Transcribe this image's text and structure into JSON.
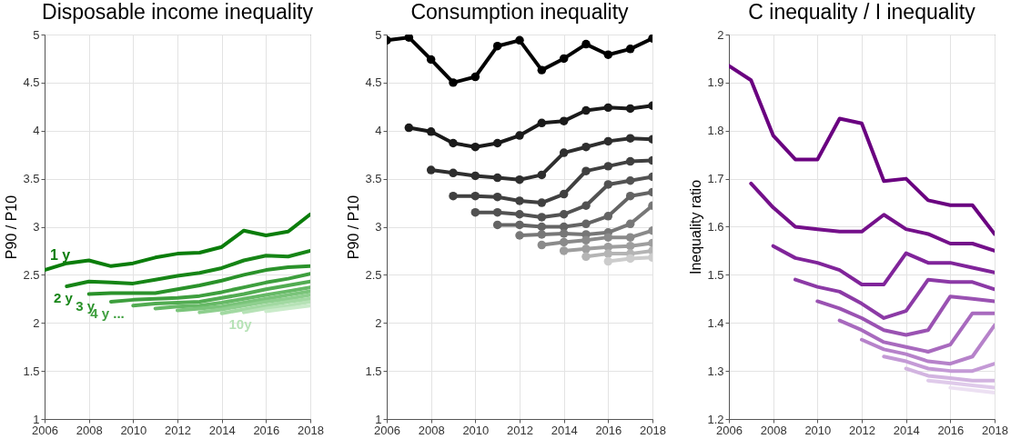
{
  "chart_data": [
    {
      "type": "line",
      "title": "Disposable income inequality",
      "ylabel": "P90 / P10",
      "xlim": [
        2006,
        2018
      ],
      "xticks": [
        2006,
        2008,
        2010,
        2012,
        2014,
        2016,
        2018
      ],
      "ylim": [
        1,
        5
      ],
      "yticks": [
        1,
        1.5,
        2,
        2.5,
        3,
        3.5,
        4,
        4.5,
        5
      ],
      "grid": true,
      "series": [
        {
          "name": "1 y",
          "color": "#0a7d0a",
          "x": [
            2006,
            2007,
            2008,
            2009,
            2010,
            2011,
            2012,
            2013,
            2014,
            2015,
            2016,
            2017,
            2018
          ],
          "values": [
            2.55,
            2.62,
            2.65,
            2.59,
            2.62,
            2.68,
            2.72,
            2.73,
            2.79,
            2.96,
            2.91,
            2.95,
            3.13
          ]
        },
        {
          "name": "2 y",
          "color": "#168516",
          "x": [
            2007,
            2008,
            2009,
            2010,
            2011,
            2012,
            2013,
            2014,
            2015,
            2016,
            2017,
            2018
          ],
          "values": [
            2.38,
            2.43,
            2.42,
            2.41,
            2.45,
            2.49,
            2.52,
            2.57,
            2.65,
            2.7,
            2.69,
            2.75
          ]
        },
        {
          "name": "3 y",
          "color": "#2a922a",
          "x": [
            2008,
            2009,
            2010,
            2011,
            2012,
            2013,
            2014,
            2015,
            2016,
            2017,
            2018
          ],
          "values": [
            2.3,
            2.31,
            2.31,
            2.31,
            2.35,
            2.39,
            2.44,
            2.5,
            2.55,
            2.58,
            2.59
          ]
        },
        {
          "name": "4 y ...",
          "color": "#3e9f3e",
          "x": [
            2009,
            2010,
            2011,
            2012,
            2013,
            2014,
            2015,
            2016,
            2017,
            2018
          ],
          "values": [
            2.22,
            2.24,
            2.25,
            2.26,
            2.28,
            2.32,
            2.37,
            2.42,
            2.46,
            2.51
          ]
        },
        {
          "color": "#52ac52",
          "x": [
            2010,
            2011,
            2012,
            2013,
            2014,
            2015,
            2016,
            2017,
            2018
          ],
          "values": [
            2.18,
            2.2,
            2.21,
            2.22,
            2.26,
            2.3,
            2.35,
            2.39,
            2.43
          ]
        },
        {
          "color": "#66b966",
          "x": [
            2011,
            2012,
            2013,
            2014,
            2015,
            2016,
            2017,
            2018
          ],
          "values": [
            2.15,
            2.17,
            2.18,
            2.21,
            2.25,
            2.29,
            2.33,
            2.37
          ]
        },
        {
          "color": "#7ac47a",
          "x": [
            2012,
            2013,
            2014,
            2015,
            2016,
            2017,
            2018
          ],
          "values": [
            2.13,
            2.15,
            2.17,
            2.21,
            2.25,
            2.29,
            2.33
          ]
        },
        {
          "color": "#8ecf8e",
          "x": [
            2013,
            2014,
            2015,
            2016,
            2017,
            2018
          ],
          "values": [
            2.11,
            2.14,
            2.18,
            2.22,
            2.25,
            2.29
          ]
        },
        {
          "color": "#a2d9a2",
          "x": [
            2014,
            2015,
            2016,
            2017,
            2018
          ],
          "values": [
            2.1,
            2.14,
            2.18,
            2.22,
            2.25
          ]
        },
        {
          "name": "10y",
          "color": "#b6e2b6",
          "x": [
            2015,
            2016,
            2017,
            2018
          ],
          "values": [
            2.11,
            2.15,
            2.18,
            2.22
          ]
        },
        {
          "color": "#caebca",
          "x": [
            2016,
            2017,
            2018
          ],
          "values": [
            2.12,
            2.15,
            2.18
          ]
        }
      ]
    },
    {
      "type": "line",
      "title": "Consumption inequality",
      "ylabel": "P90 / P10",
      "xlim": [
        2006,
        2018
      ],
      "xticks": [
        2006,
        2008,
        2010,
        2012,
        2014,
        2016,
        2018
      ],
      "ylim": [
        1,
        5
      ],
      "yticks": [
        1,
        1.5,
        2,
        2.5,
        3,
        3.5,
        4,
        4.5,
        5
      ],
      "grid": true,
      "marker": "circle",
      "series": [
        {
          "color": "#000000",
          "x": [
            2006,
            2007,
            2008,
            2009,
            2010,
            2011,
            2012,
            2013,
            2014,
            2015,
            2016,
            2017,
            2018
          ],
          "values": [
            4.94,
            4.97,
            4.74,
            4.5,
            4.56,
            4.88,
            4.94,
            4.63,
            4.75,
            4.9,
            4.79,
            4.85,
            4.96
          ]
        },
        {
          "color": "#1a1a1a",
          "x": [
            2007,
            2008,
            2009,
            2010,
            2011,
            2012,
            2013,
            2014,
            2015,
            2016,
            2017,
            2018
          ],
          "values": [
            4.03,
            3.99,
            3.87,
            3.83,
            3.87,
            3.95,
            4.08,
            4.1,
            4.21,
            4.24,
            4.23,
            4.26
          ]
        },
        {
          "color": "#2e2e2e",
          "x": [
            2008,
            2009,
            2010,
            2011,
            2012,
            2013,
            2014,
            2015,
            2016,
            2017,
            2018
          ],
          "values": [
            3.59,
            3.56,
            3.53,
            3.51,
            3.49,
            3.54,
            3.77,
            3.83,
            3.89,
            3.92,
            3.91
          ]
        },
        {
          "color": "#404040",
          "x": [
            2009,
            2010,
            2011,
            2012,
            2013,
            2014,
            2015,
            2016,
            2017,
            2018
          ],
          "values": [
            3.32,
            3.32,
            3.31,
            3.27,
            3.25,
            3.34,
            3.58,
            3.63,
            3.68,
            3.69
          ]
        },
        {
          "color": "#525252",
          "x": [
            2010,
            2011,
            2012,
            2013,
            2014,
            2015,
            2016,
            2017,
            2018
          ],
          "values": [
            3.15,
            3.15,
            3.13,
            3.1,
            3.13,
            3.22,
            3.44,
            3.48,
            3.52
          ]
        },
        {
          "color": "#646464",
          "x": [
            2011,
            2012,
            2013,
            2014,
            2015,
            2016,
            2017,
            2018
          ],
          "values": [
            3.02,
            3.02,
            3.0,
            3.0,
            3.03,
            3.11,
            3.32,
            3.36
          ]
        },
        {
          "color": "#777777",
          "x": [
            2012,
            2013,
            2014,
            2015,
            2016,
            2017,
            2018
          ],
          "values": [
            2.91,
            2.92,
            2.93,
            2.92,
            2.94,
            3.03,
            3.22
          ]
        },
        {
          "color": "#8a8a8a",
          "x": [
            2013,
            2014,
            2015,
            2016,
            2017,
            2018
          ],
          "values": [
            2.81,
            2.84,
            2.86,
            2.89,
            2.89,
            2.96
          ]
        },
        {
          "color": "#9e9e9e",
          "x": [
            2014,
            2015,
            2016,
            2017,
            2018
          ],
          "values": [
            2.75,
            2.77,
            2.79,
            2.8,
            2.83
          ]
        },
        {
          "color": "#b4b4b4",
          "x": [
            2015,
            2016,
            2017,
            2018
          ],
          "values": [
            2.69,
            2.72,
            2.72,
            2.75
          ]
        },
        {
          "color": "#cccccc",
          "x": [
            2016,
            2017,
            2018
          ],
          "values": [
            2.64,
            2.67,
            2.68
          ]
        }
      ]
    },
    {
      "type": "line",
      "title": "C inequality / I inequality",
      "ylabel": "Inequality ratio",
      "xlim": [
        2006,
        2018
      ],
      "xticks": [
        2006,
        2008,
        2010,
        2012,
        2014,
        2016,
        2018
      ],
      "ylim": [
        1.2,
        2
      ],
      "yticks": [
        1.2,
        1.3,
        1.4,
        1.5,
        1.6,
        1.7,
        1.8,
        1.9,
        2
      ],
      "grid": true,
      "series": [
        {
          "color": "#6a0080",
          "x": [
            2006,
            2007,
            2008,
            2009,
            2010,
            2011,
            2012,
            2013,
            2014,
            2015,
            2016,
            2017,
            2018
          ],
          "values": [
            1.935,
            1.905,
            1.79,
            1.74,
            1.74,
            1.825,
            1.815,
            1.695,
            1.7,
            1.655,
            1.645,
            1.645,
            1.585
          ]
        },
        {
          "color": "#74108a",
          "x": [
            2007,
            2008,
            2009,
            2010,
            2011,
            2012,
            2013,
            2014,
            2015,
            2016,
            2017,
            2018
          ],
          "values": [
            1.69,
            1.64,
            1.6,
            1.595,
            1.59,
            1.59,
            1.625,
            1.595,
            1.585,
            1.565,
            1.565,
            1.55
          ]
        },
        {
          "color": "#80249a",
          "x": [
            2008,
            2009,
            2010,
            2011,
            2012,
            2013,
            2014,
            2015,
            2016,
            2017,
            2018
          ],
          "values": [
            1.56,
            1.535,
            1.525,
            1.51,
            1.48,
            1.48,
            1.545,
            1.525,
            1.525,
            1.515,
            1.505
          ]
        },
        {
          "color": "#8c3aa6",
          "x": [
            2009,
            2010,
            2011,
            2012,
            2013,
            2014,
            2015,
            2016,
            2017,
            2018
          ],
          "values": [
            1.49,
            1.475,
            1.465,
            1.44,
            1.41,
            1.425,
            1.49,
            1.485,
            1.485,
            1.47
          ]
        },
        {
          "color": "#9a52b2",
          "x": [
            2010,
            2011,
            2012,
            2013,
            2014,
            2015,
            2016,
            2017,
            2018
          ],
          "values": [
            1.445,
            1.43,
            1.41,
            1.385,
            1.375,
            1.385,
            1.455,
            1.45,
            1.445
          ]
        },
        {
          "color": "#a86abe",
          "x": [
            2011,
            2012,
            2013,
            2014,
            2015,
            2016,
            2017,
            2018
          ],
          "values": [
            1.405,
            1.385,
            1.36,
            1.35,
            1.34,
            1.355,
            1.42,
            1.42
          ]
        },
        {
          "color": "#b682ca",
          "x": [
            2012,
            2013,
            2014,
            2015,
            2016,
            2017,
            2018
          ],
          "values": [
            1.365,
            1.345,
            1.335,
            1.32,
            1.315,
            1.33,
            1.395
          ]
        },
        {
          "color": "#c49ad6",
          "x": [
            2013,
            2014,
            2015,
            2016,
            2017,
            2018
          ],
          "values": [
            1.33,
            1.32,
            1.305,
            1.3,
            1.3,
            1.315
          ]
        },
        {
          "color": "#d2b4e0",
          "x": [
            2014,
            2015,
            2016,
            2017,
            2018
          ],
          "values": [
            1.305,
            1.29,
            1.285,
            1.28,
            1.28
          ]
        },
        {
          "color": "#dfcaea",
          "x": [
            2015,
            2016,
            2017,
            2018
          ],
          "values": [
            1.28,
            1.275,
            1.27,
            1.265
          ]
        },
        {
          "color": "#ece0f2",
          "x": [
            2016,
            2017,
            2018
          ],
          "values": [
            1.265,
            1.26,
            1.255
          ]
        }
      ]
    }
  ]
}
